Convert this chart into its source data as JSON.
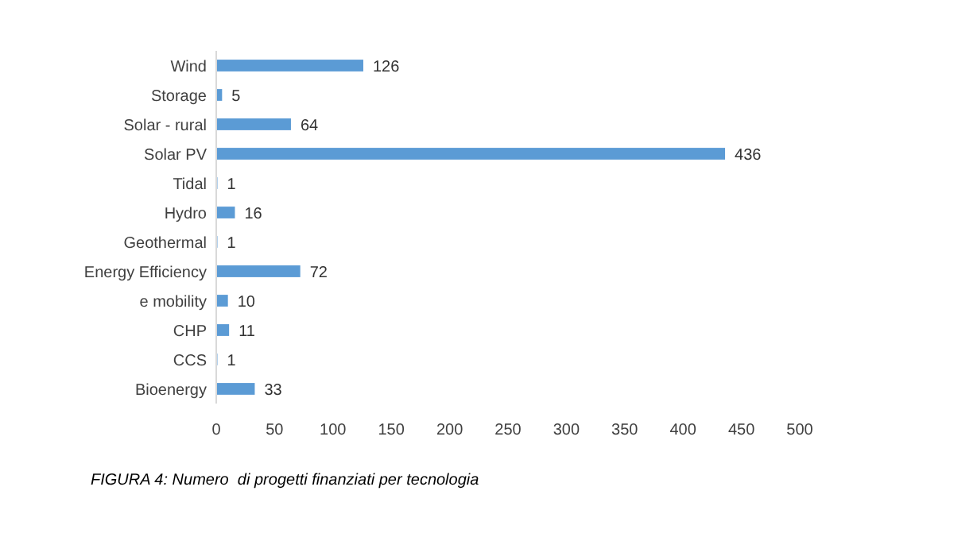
{
  "chart_data": {
    "type": "bar",
    "orientation": "horizontal",
    "categories": [
      "Wind",
      "Storage",
      "Solar - rural",
      "Solar PV",
      "Tidal",
      "Hydro",
      "Geothermal",
      "Energy Efficiency",
      "e mobility",
      "CHP",
      "CCS",
      "Bioenergy"
    ],
    "values": [
      126,
      5,
      64,
      436,
      1,
      16,
      1,
      72,
      10,
      11,
      1,
      33
    ],
    "color": "#5b9bd5",
    "xlim": [
      0,
      500
    ],
    "xticks": [
      0,
      50,
      100,
      150,
      200,
      250,
      300,
      350,
      400,
      450,
      500
    ],
    "data_labels": true,
    "grid": false,
    "annotations": [
      "FIGURA 4: Numero  di progetti finanziati per tecnologia"
    ]
  }
}
